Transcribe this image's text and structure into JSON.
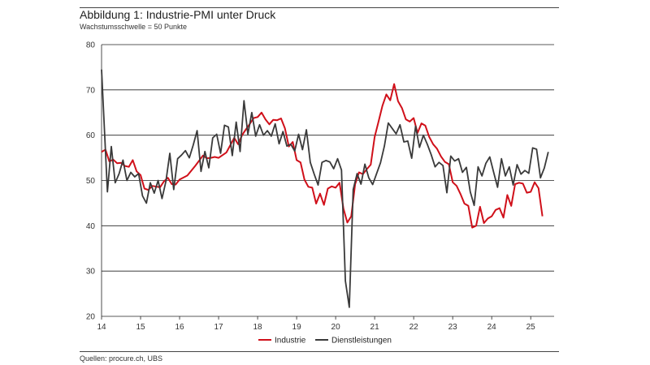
{
  "header": {
    "title": "Abbildung 1: Industrie-PMI unter Druck",
    "subtitle": "Wachstumsschwelle = 50 Punkte"
  },
  "footer": {
    "source": "Quellen: procure.ch, UBS"
  },
  "colors": {
    "industrie": "#d0101a",
    "dienstleistungen": "#3a3a3a",
    "grid": "#222222"
  },
  "chart_data": {
    "type": "line",
    "title": "Abbildung 1: Industrie-PMI unter Druck",
    "subtitle": "Wachstumsschwelle = 50 Punkte",
    "xlabel": "",
    "ylabel": "",
    "xlim": [
      2014.0,
      2025.6
    ],
    "ylim": [
      20,
      80
    ],
    "yticks": [
      20,
      30,
      40,
      50,
      60,
      70,
      80
    ],
    "xticks": [
      "14",
      "15",
      "16",
      "17",
      "18",
      "19",
      "20",
      "21",
      "22",
      "23",
      "24",
      "25"
    ],
    "xtick_years": [
      2014,
      2015,
      2016,
      2017,
      2018,
      2019,
      2020,
      2021,
      2022,
      2023,
      2024,
      2025
    ],
    "grid": "horizontal",
    "legend": "bottom-center",
    "series": [
      {
        "name": "Industrie",
        "color": "#d0101a",
        "points": [
          [
            2014.0,
            56.3
          ],
          [
            2014.1,
            56.8
          ],
          [
            2014.2,
            54.2
          ],
          [
            2014.3,
            54.6
          ],
          [
            2014.4,
            53.8
          ],
          [
            2014.5,
            53.9
          ],
          [
            2014.6,
            53.2
          ],
          [
            2014.7,
            53.0
          ],
          [
            2014.8,
            54.5
          ],
          [
            2014.9,
            52.0
          ],
          [
            2015.0,
            51.2
          ],
          [
            2015.1,
            48.2
          ],
          [
            2015.2,
            47.9
          ],
          [
            2015.3,
            48.8
          ],
          [
            2015.5,
            48.5
          ],
          [
            2015.6,
            49.8
          ],
          [
            2015.7,
            50.6
          ],
          [
            2015.8,
            49.2
          ],
          [
            2015.9,
            49.1
          ],
          [
            2016.0,
            50.2
          ],
          [
            2016.2,
            51.1
          ],
          [
            2016.4,
            53.2
          ],
          [
            2016.6,
            55.5
          ],
          [
            2016.7,
            54.9
          ],
          [
            2016.8,
            55.0
          ],
          [
            2016.9,
            55.2
          ],
          [
            2017.0,
            55.0
          ],
          [
            2017.2,
            56.2
          ],
          [
            2017.4,
            59.4
          ],
          [
            2017.5,
            58.0
          ],
          [
            2017.6,
            60.0
          ],
          [
            2017.7,
            61.3
          ],
          [
            2017.8,
            62.5
          ],
          [
            2017.9,
            63.8
          ],
          [
            2018.0,
            64.0
          ],
          [
            2018.1,
            65.0
          ],
          [
            2018.2,
            63.5
          ],
          [
            2018.3,
            62.4
          ],
          [
            2018.4,
            63.4
          ],
          [
            2018.5,
            63.3
          ],
          [
            2018.6,
            63.7
          ],
          [
            2018.7,
            61.5
          ],
          [
            2018.8,
            57.5
          ],
          [
            2018.9,
            58.5
          ],
          [
            2019.0,
            54.5
          ],
          [
            2019.1,
            54.0
          ],
          [
            2019.2,
            50.2
          ],
          [
            2019.3,
            48.6
          ],
          [
            2019.4,
            48.4
          ],
          [
            2019.5,
            44.9
          ],
          [
            2019.6,
            47.1
          ],
          [
            2019.7,
            44.6
          ],
          [
            2019.8,
            48.2
          ],
          [
            2019.9,
            48.7
          ],
          [
            2020.0,
            48.4
          ],
          [
            2020.1,
            49.5
          ],
          [
            2020.2,
            43.8
          ],
          [
            2020.3,
            40.7
          ],
          [
            2020.4,
            42.1
          ],
          [
            2020.5,
            49.2
          ],
          [
            2020.6,
            51.8
          ],
          [
            2020.7,
            51.4
          ],
          [
            2020.8,
            52.5
          ],
          [
            2020.9,
            53.5
          ],
          [
            2021.0,
            59.6
          ],
          [
            2021.1,
            63.0
          ],
          [
            2021.2,
            66.5
          ],
          [
            2021.3,
            69.0
          ],
          [
            2021.4,
            67.7
          ],
          [
            2021.5,
            71.3
          ],
          [
            2021.6,
            67.5
          ],
          [
            2021.7,
            66.0
          ],
          [
            2021.8,
            63.5
          ],
          [
            2021.9,
            63.0
          ],
          [
            2022.0,
            63.8
          ],
          [
            2022.1,
            60.5
          ],
          [
            2022.2,
            62.6
          ],
          [
            2022.3,
            62.1
          ],
          [
            2022.4,
            59.6
          ],
          [
            2022.5,
            58.0
          ],
          [
            2022.6,
            57.0
          ],
          [
            2022.7,
            55.3
          ],
          [
            2022.8,
            54.1
          ],
          [
            2022.9,
            53.6
          ],
          [
            2023.0,
            49.6
          ],
          [
            2023.1,
            48.8
          ],
          [
            2023.2,
            47.0
          ],
          [
            2023.3,
            44.9
          ],
          [
            2023.4,
            44.4
          ],
          [
            2023.5,
            39.6
          ],
          [
            2023.6,
            40.0
          ],
          [
            2023.7,
            44.2
          ],
          [
            2023.8,
            40.6
          ],
          [
            2023.9,
            41.6
          ],
          [
            2024.0,
            42.1
          ],
          [
            2024.1,
            43.5
          ],
          [
            2024.2,
            43.9
          ],
          [
            2024.3,
            41.8
          ],
          [
            2024.4,
            46.8
          ],
          [
            2024.5,
            44.4
          ],
          [
            2024.6,
            49.2
          ],
          [
            2024.7,
            49.5
          ],
          [
            2024.8,
            49.3
          ],
          [
            2024.9,
            47.3
          ],
          [
            2025.0,
            47.5
          ],
          [
            2025.1,
            49.6
          ],
          [
            2025.2,
            48.3
          ],
          [
            2025.3,
            42.1
          ]
        ]
      },
      {
        "name": "Dienstleistungen",
        "color": "#3a3a3a",
        "points": [
          [
            2014.0,
            74.5
          ],
          [
            2014.15,
            47.5
          ],
          [
            2014.25,
            57.5
          ],
          [
            2014.35,
            49.5
          ],
          [
            2014.45,
            51.5
          ],
          [
            2014.55,
            54.5
          ],
          [
            2014.65,
            50.0
          ],
          [
            2014.75,
            51.8
          ],
          [
            2014.85,
            50.8
          ],
          [
            2014.95,
            51.5
          ],
          [
            2015.05,
            46.6
          ],
          [
            2015.15,
            45.0
          ],
          [
            2015.25,
            49.5
          ],
          [
            2015.35,
            47.2
          ],
          [
            2015.45,
            50.0
          ],
          [
            2015.55,
            46.0
          ],
          [
            2015.65,
            49.8
          ],
          [
            2015.75,
            56.0
          ],
          [
            2015.85,
            48.0
          ],
          [
            2015.95,
            54.8
          ],
          [
            2016.05,
            55.6
          ],
          [
            2016.15,
            56.6
          ],
          [
            2016.25,
            55.0
          ],
          [
            2016.35,
            57.8
          ],
          [
            2016.45,
            61.0
          ],
          [
            2016.55,
            52.0
          ],
          [
            2016.65,
            56.4
          ],
          [
            2016.75,
            52.8
          ],
          [
            2016.85,
            59.4
          ],
          [
            2016.95,
            60.2
          ],
          [
            2017.05,
            56.0
          ],
          [
            2017.15,
            62.2
          ],
          [
            2017.25,
            61.8
          ],
          [
            2017.35,
            55.5
          ],
          [
            2017.45,
            62.9
          ],
          [
            2017.55,
            56.4
          ],
          [
            2017.65,
            67.6
          ],
          [
            2017.75,
            60.2
          ],
          [
            2017.85,
            65.0
          ],
          [
            2017.95,
            59.8
          ],
          [
            2018.05,
            62.3
          ],
          [
            2018.15,
            60.0
          ],
          [
            2018.25,
            61.0
          ],
          [
            2018.35,
            59.8
          ],
          [
            2018.45,
            62.5
          ],
          [
            2018.55,
            58.1
          ],
          [
            2018.65,
            60.8
          ],
          [
            2018.75,
            57.6
          ],
          [
            2018.85,
            58.0
          ],
          [
            2018.95,
            56.5
          ],
          [
            2019.05,
            60.2
          ],
          [
            2019.15,
            56.8
          ],
          [
            2019.25,
            61.2
          ],
          [
            2019.35,
            54.0
          ],
          [
            2019.45,
            51.4
          ],
          [
            2019.55,
            49.0
          ],
          [
            2019.65,
            54.0
          ],
          [
            2019.75,
            54.4
          ],
          [
            2019.85,
            54.1
          ],
          [
            2019.95,
            52.6
          ],
          [
            2020.05,
            54.8
          ],
          [
            2020.15,
            52.3
          ],
          [
            2020.25,
            27.8
          ],
          [
            2020.35,
            22.0
          ],
          [
            2020.45,
            48.0
          ],
          [
            2020.55,
            51.5
          ],
          [
            2020.65,
            49.2
          ],
          [
            2020.75,
            53.6
          ],
          [
            2020.85,
            50.6
          ],
          [
            2020.95,
            49.1
          ],
          [
            2021.05,
            51.5
          ],
          [
            2021.15,
            53.9
          ],
          [
            2021.25,
            57.6
          ],
          [
            2021.35,
            62.7
          ],
          [
            2021.45,
            61.5
          ],
          [
            2021.55,
            60.3
          ],
          [
            2021.65,
            62.3
          ],
          [
            2021.75,
            58.5
          ],
          [
            2021.85,
            58.7
          ],
          [
            2021.95,
            54.9
          ],
          [
            2022.05,
            62.0
          ],
          [
            2022.15,
            57.3
          ],
          [
            2022.25,
            60.0
          ],
          [
            2022.35,
            58.0
          ],
          [
            2022.45,
            55.7
          ],
          [
            2022.55,
            53.0
          ],
          [
            2022.65,
            54.0
          ],
          [
            2022.75,
            53.3
          ],
          [
            2022.85,
            47.3
          ],
          [
            2022.95,
            55.4
          ],
          [
            2023.05,
            54.3
          ],
          [
            2023.15,
            54.8
          ],
          [
            2023.25,
            51.8
          ],
          [
            2023.35,
            52.9
          ],
          [
            2023.45,
            47.5
          ],
          [
            2023.55,
            44.5
          ],
          [
            2023.65,
            53.0
          ],
          [
            2023.75,
            51.0
          ],
          [
            2023.85,
            53.8
          ],
          [
            2023.95,
            55.2
          ],
          [
            2024.05,
            51.8
          ],
          [
            2024.15,
            48.5
          ],
          [
            2024.25,
            54.8
          ],
          [
            2024.35,
            51.0
          ],
          [
            2024.45,
            53.0
          ],
          [
            2024.55,
            49.0
          ],
          [
            2024.65,
            53.5
          ],
          [
            2024.75,
            51.4
          ],
          [
            2024.85,
            52.2
          ],
          [
            2024.95,
            51.6
          ],
          [
            2025.05,
            57.2
          ],
          [
            2025.15,
            56.9
          ],
          [
            2025.25,
            50.6
          ],
          [
            2025.35,
            52.8
          ],
          [
            2025.45,
            56.3
          ]
        ]
      }
    ]
  }
}
